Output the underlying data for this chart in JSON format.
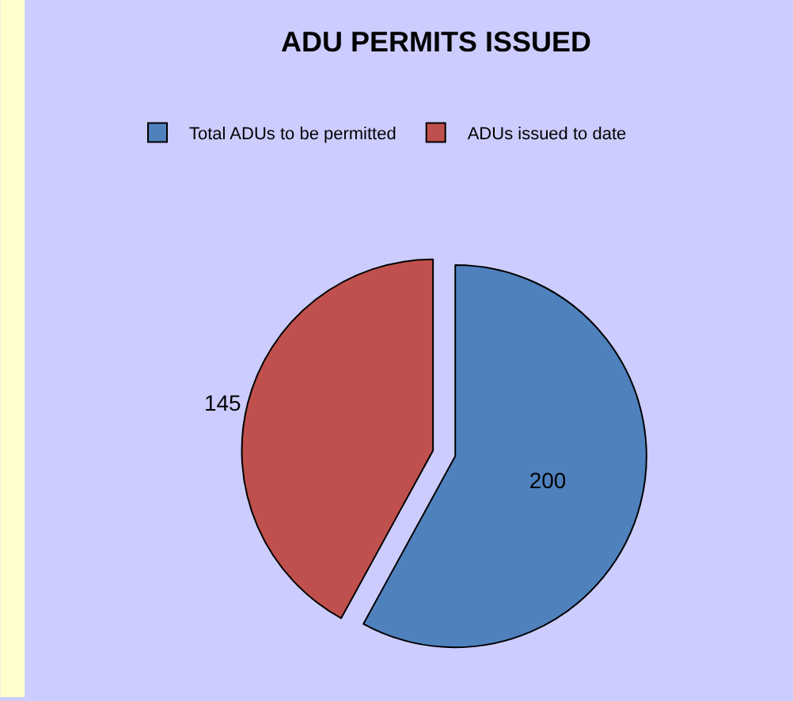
{
  "chart_data": {
    "type": "pie",
    "title": "ADU PERMITS ISSUED",
    "categories": [
      "Total ADUs to be permitted",
      "ADUs issued to date"
    ],
    "values": [
      200,
      145
    ],
    "data_labels": true,
    "colors": [
      "#4f81bd",
      "#c0504d"
    ],
    "legend": "top"
  }
}
